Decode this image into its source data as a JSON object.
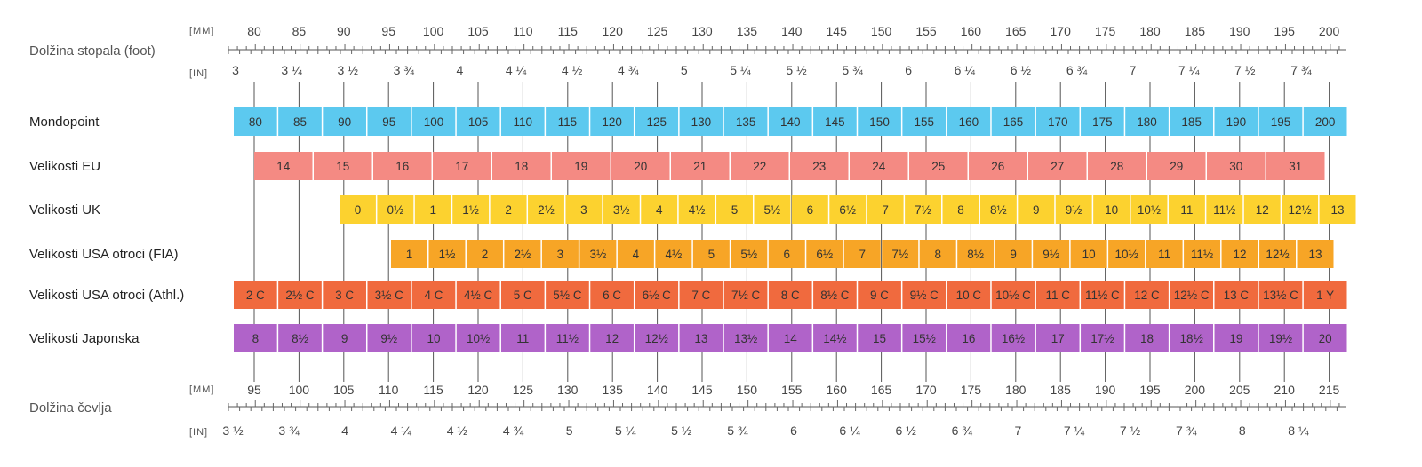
{
  "chart_data": {
    "type": "table",
    "top_axis": {
      "label": "Dolžina stopala (foot)",
      "unit_mm": "[MM]",
      "unit_in": "[IN]",
      "mm_labels": [
        "80",
        "85",
        "90",
        "95",
        "100",
        "105",
        "110",
        "115",
        "120",
        "125",
        "130",
        "135",
        "140",
        "145",
        "150",
        "155",
        "160",
        "165",
        "170",
        "175",
        "180",
        "185",
        "190",
        "195",
        "200"
      ],
      "in_labels": [
        "3",
        "3 ¼",
        "3 ½",
        "3 ¾",
        "4",
        "4 ¼",
        "4 ½",
        "4 ¾",
        "5",
        "5 ¼",
        "5 ½",
        "5 ¾",
        "6",
        "6 ¼",
        "6 ½",
        "6 ¾",
        "7",
        "7 ¼",
        "7 ½",
        "7 ¾"
      ]
    },
    "rows": [
      {
        "label": "Mondopoint",
        "color": "#5cc9ef",
        "cells": [
          "80",
          "85",
          "90",
          "95",
          "100",
          "105",
          "110",
          "115",
          "120",
          "125",
          "130",
          "135",
          "140",
          "145",
          "150",
          "155",
          "160",
          "165",
          "170",
          "175",
          "180",
          "185",
          "190",
          "195",
          "200"
        ]
      },
      {
        "label": "Velikosti EU",
        "color": "#f48a83",
        "cells": [
          "14",
          "15",
          "16",
          "17",
          "18",
          "19",
          "20",
          "21",
          "22",
          "23",
          "24",
          "25",
          "26",
          "27",
          "28",
          "29",
          "30",
          "31"
        ]
      },
      {
        "label": "Velikosti UK",
        "color": "#fcd22f",
        "cells": [
          "0",
          "0½",
          "1",
          "1½",
          "2",
          "2½",
          "3",
          "3½",
          "4",
          "4½",
          "5",
          "5½",
          "6",
          "6½",
          "7",
          "7½",
          "8",
          "8½",
          "9",
          "9½",
          "10",
          "10½",
          "11",
          "11½",
          "12",
          "12½",
          "13"
        ]
      },
      {
        "label": "Velikosti USA otroci (FIA)",
        "color": "#f7a526",
        "cells": [
          "1",
          "1½",
          "2",
          "2½",
          "3",
          "3½",
          "4",
          "4½",
          "5",
          "5½",
          "6",
          "6½",
          "7",
          "7½",
          "8",
          "8½",
          "9",
          "9½",
          "10",
          "10½",
          "11",
          "11½",
          "12",
          "12½",
          "13"
        ]
      },
      {
        "label": "Velikosti USA otroci (Athl.)",
        "color": "#f06a3e",
        "cells": [
          "2 C",
          "2½ C",
          "3 C",
          "3½ C",
          "4 C",
          "4½ C",
          "5 C",
          "5½ C",
          "6 C",
          "6½ C",
          "7 C",
          "7½ C",
          "8 C",
          "8½ C",
          "9 C",
          "9½ C",
          "10 C",
          "10½ C",
          "11 C",
          "11½ C",
          "12 C",
          "12½ C",
          "13 C",
          "13½ C",
          "1 Y"
        ]
      },
      {
        "label": "Velikosti Japonska",
        "color": "#b063c9",
        "cells": [
          "8",
          "8½",
          "9",
          "9½",
          "10",
          "10½",
          "11",
          "11½",
          "12",
          "12½",
          "13",
          "13½",
          "14",
          "14½",
          "15",
          "15½",
          "16",
          "16½",
          "17",
          "17½",
          "18",
          "18½",
          "19",
          "19½",
          "20"
        ]
      }
    ],
    "bottom_axis": {
      "label": "Dolžina čevlja",
      "unit_mm": "[MM]",
      "unit_in": "[IN]",
      "mm_labels": [
        "95",
        "100",
        "105",
        "110",
        "115",
        "120",
        "125",
        "130",
        "135",
        "140",
        "145",
        "150",
        "155",
        "160",
        "165",
        "170",
        "175",
        "180",
        "185",
        "190",
        "195",
        "200",
        "205",
        "210",
        "215"
      ],
      "in_labels": [
        "3 ½",
        "3 ¾",
        "4",
        "4 ¼",
        "4 ½",
        "4 ¾",
        "5",
        "5 ¼",
        "5 ½",
        "5 ¾",
        "6",
        "6 ¼",
        "6 ½",
        "6 ¾",
        "7",
        "7 ¼",
        "7 ½",
        "7 ¾",
        "8",
        "8 ¼"
      ]
    }
  }
}
